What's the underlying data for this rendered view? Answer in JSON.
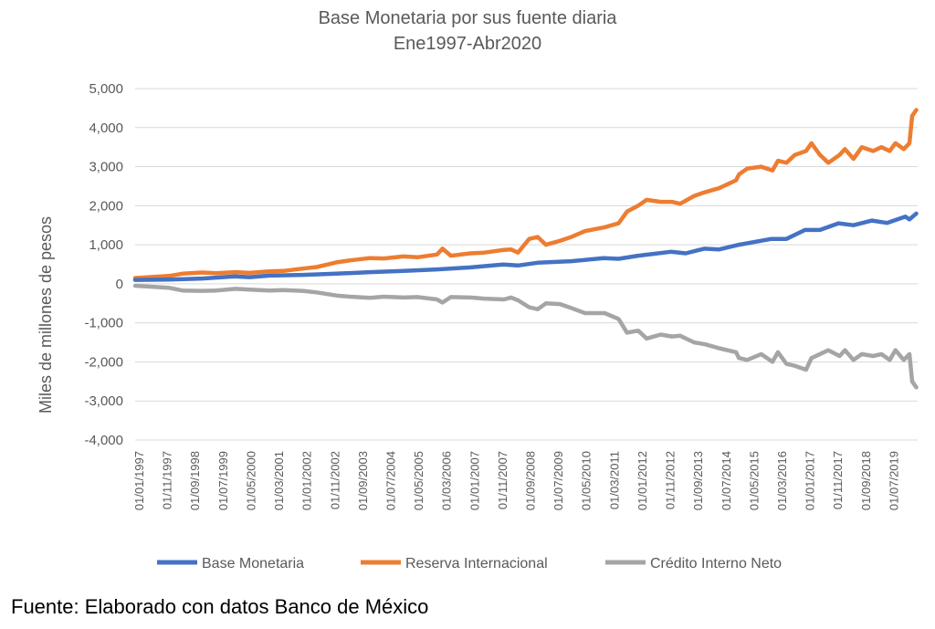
{
  "chart_data": {
    "type": "line",
    "title": "Base Monetaria por sus fuente diaria",
    "subtitle": "Ene1997-Abr2020",
    "xlabel": "",
    "ylabel": "Miles de millones de pesos",
    "ylim": [
      -4000,
      5000
    ],
    "yticks": [
      5000,
      4000,
      3000,
      2000,
      1000,
      0,
      -1000,
      -2000,
      -3000,
      -4000
    ],
    "ytick_labels": [
      "5,000",
      "4,000",
      "3,000",
      "2,000",
      "1,000",
      "0",
      "-1,000",
      "-2,000",
      "-3,000",
      "-4,000"
    ],
    "xlim": [
      "1997-01-01",
      "2020-04-30"
    ],
    "xtick_labels": [
      "01/01/1997",
      "01/11/1997",
      "01/09/1998",
      "01/07/1999",
      "01/05/2000",
      "01/03/2001",
      "01/01/2002",
      "01/11/2002",
      "01/09/2003",
      "01/07/2004",
      "01/05/2005",
      "01/03/2006",
      "01/01/2007",
      "01/11/2007",
      "01/09/2008",
      "01/07/2009",
      "01/05/2010",
      "01/03/2011",
      "01/01/2012",
      "01/11/2012",
      "01/09/2013",
      "01/07/2014",
      "01/05/2015",
      "01/03/2016",
      "01/01/2017",
      "01/11/2017",
      "01/09/2018",
      "01/07/2019"
    ],
    "grid": true,
    "legend_position": "bottom",
    "series": [
      {
        "name": "Base Monetaria",
        "color": "#4472C4",
        "points": [
          [
            "1997-01-01",
            100
          ],
          [
            "1998-01-01",
            110
          ],
          [
            "1999-01-01",
            135
          ],
          [
            "1999-12-20",
            190
          ],
          [
            "2000-06-01",
            170
          ],
          [
            "2001-01-01",
            210
          ],
          [
            "2002-01-01",
            230
          ],
          [
            "2003-01-01",
            260
          ],
          [
            "2004-01-01",
            300
          ],
          [
            "2005-01-01",
            330
          ],
          [
            "2006-01-01",
            370
          ],
          [
            "2007-01-01",
            420
          ],
          [
            "2007-12-20",
            495
          ],
          [
            "2008-06-01",
            470
          ],
          [
            "2009-01-01",
            540
          ],
          [
            "2010-01-01",
            580
          ],
          [
            "2010-12-20",
            660
          ],
          [
            "2011-06-01",
            640
          ],
          [
            "2012-01-01",
            720
          ],
          [
            "2012-12-20",
            820
          ],
          [
            "2013-06-01",
            780
          ],
          [
            "2013-12-20",
            900
          ],
          [
            "2014-06-01",
            880
          ],
          [
            "2015-01-01",
            1000
          ],
          [
            "2015-12-20",
            1150
          ],
          [
            "2016-06-01",
            1150
          ],
          [
            "2016-12-20",
            1380
          ],
          [
            "2017-06-01",
            1380
          ],
          [
            "2017-12-20",
            1550
          ],
          [
            "2018-06-01",
            1500
          ],
          [
            "2018-12-20",
            1620
          ],
          [
            "2019-06-01",
            1560
          ],
          [
            "2019-12-20",
            1720
          ],
          [
            "2020-02-01",
            1650
          ],
          [
            "2020-04-15",
            1800
          ]
        ]
      },
      {
        "name": "Reserva Internacional",
        "color": "#ED7D31",
        "points": [
          [
            "1997-01-01",
            150
          ],
          [
            "1997-06-01",
            170
          ],
          [
            "1998-01-01",
            200
          ],
          [
            "1998-06-01",
            260
          ],
          [
            "1999-01-01",
            290
          ],
          [
            "1999-06-01",
            270
          ],
          [
            "2000-01-01",
            300
          ],
          [
            "2000-06-01",
            280
          ],
          [
            "2001-01-01",
            320
          ],
          [
            "2001-06-01",
            330
          ],
          [
            "2002-01-01",
            390
          ],
          [
            "2002-06-01",
            430
          ],
          [
            "2003-01-01",
            550
          ],
          [
            "2003-06-01",
            600
          ],
          [
            "2004-01-01",
            660
          ],
          [
            "2004-06-01",
            650
          ],
          [
            "2005-01-01",
            700
          ],
          [
            "2005-06-01",
            680
          ],
          [
            "2006-01-01",
            750
          ],
          [
            "2006-03-01",
            900
          ],
          [
            "2006-06-01",
            720
          ],
          [
            "2007-01-01",
            780
          ],
          [
            "2007-06-01",
            800
          ],
          [
            "2008-01-01",
            870
          ],
          [
            "2008-03-15",
            880
          ],
          [
            "2008-06-01",
            800
          ],
          [
            "2008-10-01",
            1150
          ],
          [
            "2009-01-01",
            1200
          ],
          [
            "2009-04-01",
            1000
          ],
          [
            "2009-09-01",
            1100
          ],
          [
            "2010-01-01",
            1200
          ],
          [
            "2010-06-01",
            1350
          ],
          [
            "2011-01-01",
            1450
          ],
          [
            "2011-06-01",
            1550
          ],
          [
            "2011-09-01",
            1850
          ],
          [
            "2012-01-01",
            2000
          ],
          [
            "2012-04-01",
            2150
          ],
          [
            "2012-09-01",
            2100
          ],
          [
            "2013-01-01",
            2100
          ],
          [
            "2013-04-01",
            2050
          ],
          [
            "2013-09-01",
            2250
          ],
          [
            "2014-01-01",
            2350
          ],
          [
            "2014-06-01",
            2450
          ],
          [
            "2014-12-01",
            2650
          ],
          [
            "2015-01-01",
            2800
          ],
          [
            "2015-04-01",
            2950
          ],
          [
            "2015-09-01",
            3000
          ],
          [
            "2016-01-01",
            2900
          ],
          [
            "2016-03-01",
            3150
          ],
          [
            "2016-06-01",
            3100
          ],
          [
            "2016-09-01",
            3300
          ],
          [
            "2017-01-01",
            3400
          ],
          [
            "2017-03-01",
            3600
          ],
          [
            "2017-06-01",
            3300
          ],
          [
            "2017-09-01",
            3100
          ],
          [
            "2018-01-01",
            3300
          ],
          [
            "2018-03-01",
            3450
          ],
          [
            "2018-06-01",
            3200
          ],
          [
            "2018-09-01",
            3500
          ],
          [
            "2019-01-01",
            3400
          ],
          [
            "2019-04-01",
            3500
          ],
          [
            "2019-07-01",
            3400
          ],
          [
            "2019-09-01",
            3600
          ],
          [
            "2019-12-01",
            3450
          ],
          [
            "2020-02-01",
            3600
          ],
          [
            "2020-03-01",
            4300
          ],
          [
            "2020-04-15",
            4450
          ]
        ]
      },
      {
        "name": "Crédito Interno Neto",
        "color": "#A5A5A5",
        "points": [
          [
            "1997-01-01",
            -50
          ],
          [
            "1997-06-01",
            -70
          ],
          [
            "1998-01-01",
            -100
          ],
          [
            "1998-06-01",
            -170
          ],
          [
            "1999-01-01",
            -180
          ],
          [
            "1999-06-01",
            -170
          ],
          [
            "2000-01-01",
            -130
          ],
          [
            "2000-06-01",
            -150
          ],
          [
            "2001-01-01",
            -170
          ],
          [
            "2001-06-01",
            -160
          ],
          [
            "2002-01-01",
            -180
          ],
          [
            "2002-06-01",
            -220
          ],
          [
            "2003-01-01",
            -300
          ],
          [
            "2003-06-01",
            -330
          ],
          [
            "2004-01-01",
            -360
          ],
          [
            "2004-06-01",
            -330
          ],
          [
            "2005-01-01",
            -350
          ],
          [
            "2005-06-01",
            -340
          ],
          [
            "2006-01-01",
            -400
          ],
          [
            "2006-03-01",
            -480
          ],
          [
            "2006-06-01",
            -340
          ],
          [
            "2007-01-01",
            -350
          ],
          [
            "2007-06-01",
            -380
          ],
          [
            "2008-01-01",
            -400
          ],
          [
            "2008-03-15",
            -350
          ],
          [
            "2008-06-01",
            -420
          ],
          [
            "2008-10-01",
            -600
          ],
          [
            "2009-01-01",
            -650
          ],
          [
            "2009-04-01",
            -500
          ],
          [
            "2009-09-01",
            -520
          ],
          [
            "2010-01-01",
            -620
          ],
          [
            "2010-06-01",
            -750
          ],
          [
            "2011-01-01",
            -750
          ],
          [
            "2011-06-01",
            -900
          ],
          [
            "2011-09-01",
            -1250
          ],
          [
            "2012-01-01",
            -1200
          ],
          [
            "2012-04-01",
            -1400
          ],
          [
            "2012-09-01",
            -1300
          ],
          [
            "2013-01-01",
            -1350
          ],
          [
            "2013-04-01",
            -1330
          ],
          [
            "2013-09-01",
            -1500
          ],
          [
            "2014-01-01",
            -1550
          ],
          [
            "2014-06-01",
            -1650
          ],
          [
            "2014-12-01",
            -1750
          ],
          [
            "2015-01-01",
            -1900
          ],
          [
            "2015-04-01",
            -1950
          ],
          [
            "2015-09-01",
            -1800
          ],
          [
            "2016-01-01",
            -2000
          ],
          [
            "2016-03-01",
            -1750
          ],
          [
            "2016-06-01",
            -2050
          ],
          [
            "2016-09-01",
            -2100
          ],
          [
            "2017-01-01",
            -2200
          ],
          [
            "2017-03-01",
            -1900
          ],
          [
            "2017-06-01",
            -1800
          ],
          [
            "2017-09-01",
            -1700
          ],
          [
            "2018-01-01",
            -1850
          ],
          [
            "2018-03-01",
            -1700
          ],
          [
            "2018-06-01",
            -1950
          ],
          [
            "2018-09-01",
            -1800
          ],
          [
            "2019-01-01",
            -1850
          ],
          [
            "2019-04-01",
            -1800
          ],
          [
            "2019-07-01",
            -1950
          ],
          [
            "2019-09-01",
            -1700
          ],
          [
            "2019-12-01",
            -1950
          ],
          [
            "2020-02-01",
            -1800
          ],
          [
            "2020-03-01",
            -2500
          ],
          [
            "2020-04-15",
            -2650
          ]
        ]
      }
    ]
  },
  "source_note": "Fuente: Elaborado con datos Banco de México"
}
